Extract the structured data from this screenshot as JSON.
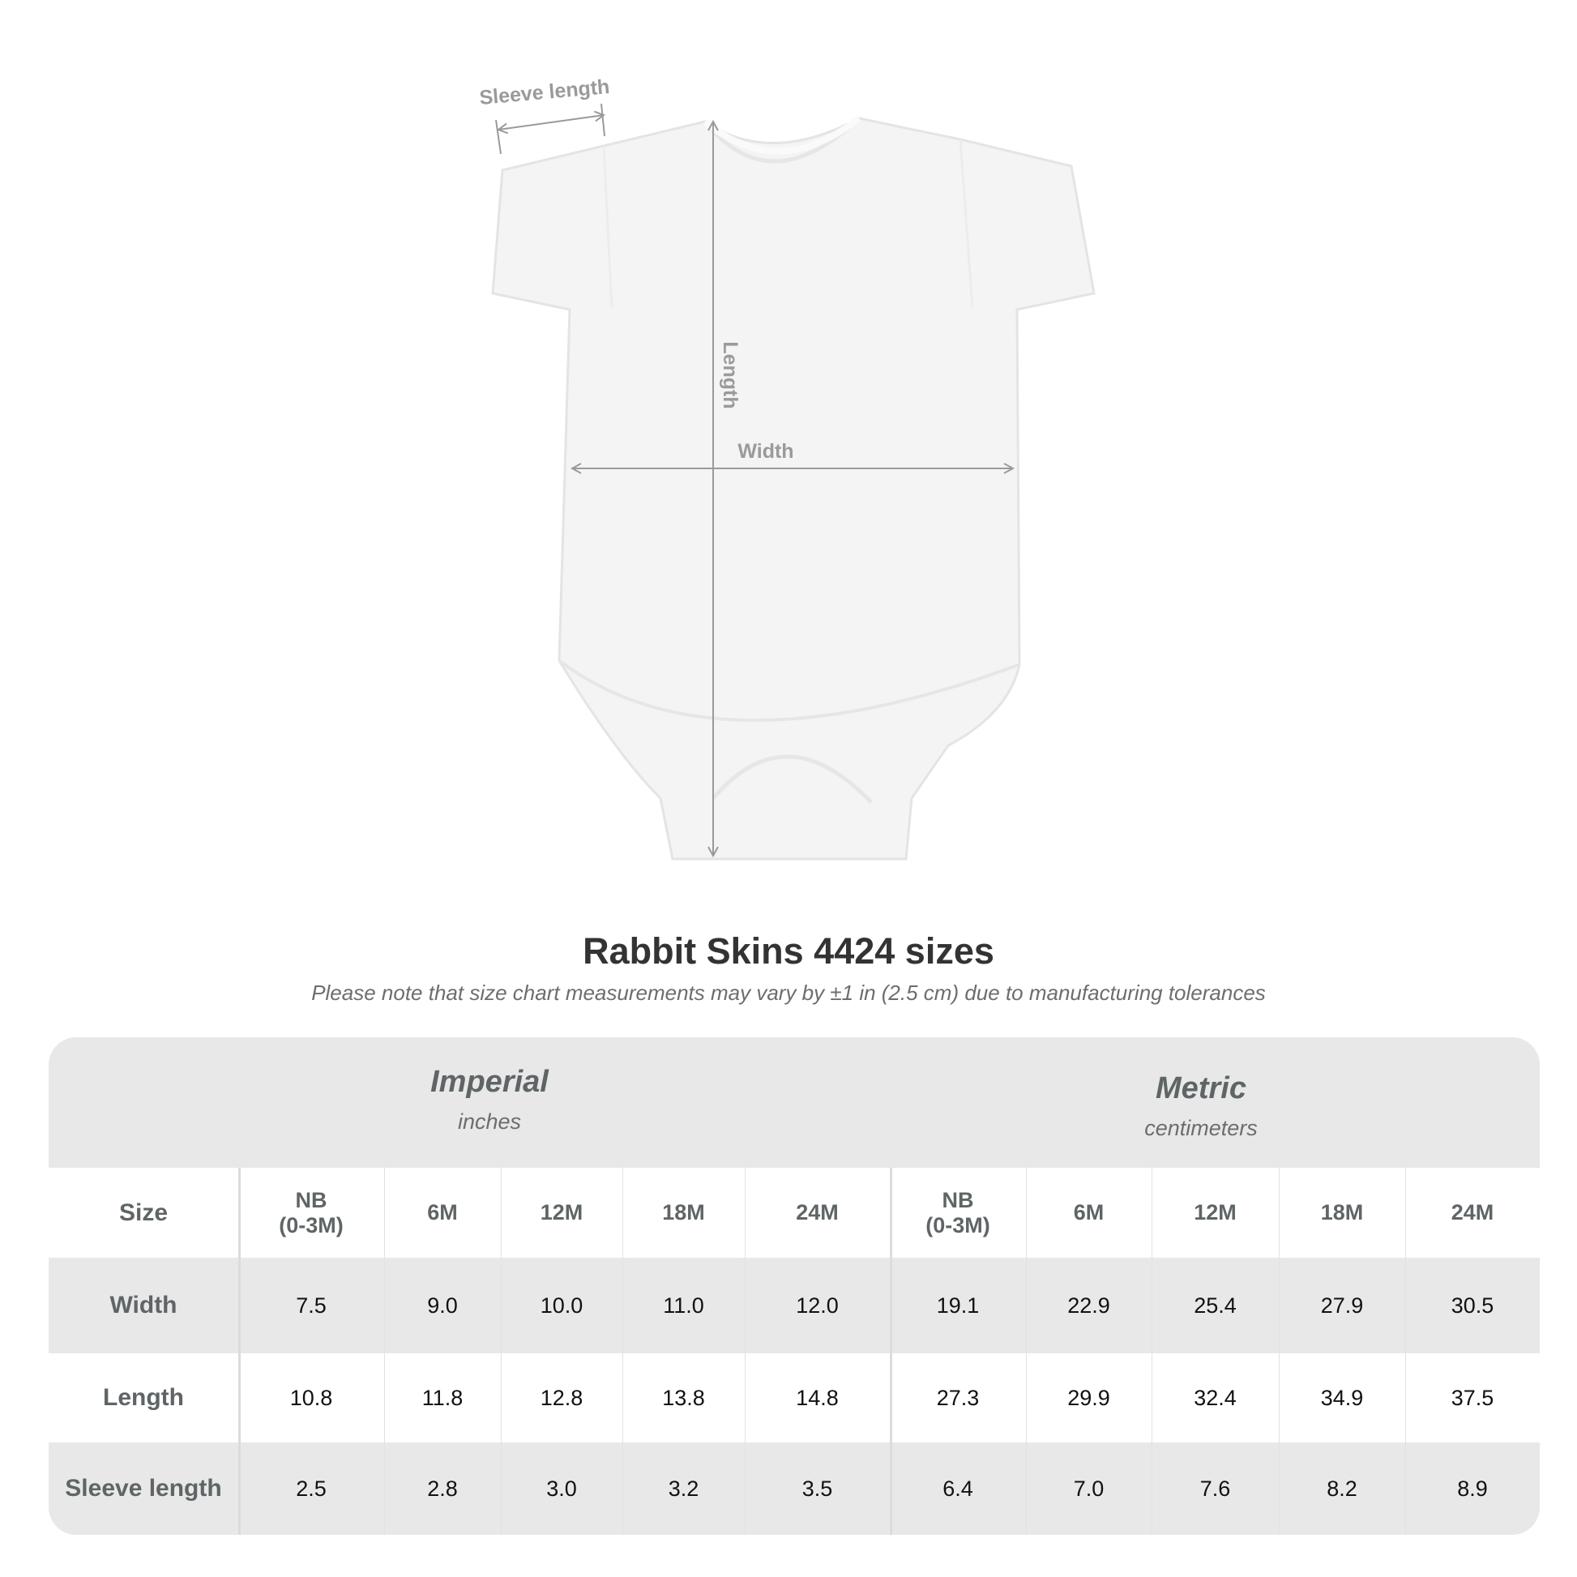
{
  "diagram": {
    "labels": {
      "sleeve": "Sleeve length",
      "length": "Length",
      "width": "Width"
    },
    "garment_color": "#f4f4f4",
    "arrow_color": "#9a9a9a"
  },
  "title": "Rabbit Skins 4424 sizes",
  "subtitle": "Please note that size chart measurements may vary by ±1 in (2.5 cm) due to manufacturing tolerances",
  "table": {
    "imperial": {
      "name": "Imperial",
      "unit": "inches"
    },
    "metric": {
      "name": "Metric",
      "unit": "centimeters"
    },
    "size_label": "Size",
    "sizes": [
      "NB\n(0-3M)",
      "6M",
      "12M",
      "18M",
      "24M",
      "NB\n(0-3M)",
      "6M",
      "12M",
      "18M",
      "24M"
    ],
    "rows": [
      {
        "label": "Width",
        "values": [
          "7.5",
          "9.0",
          "10.0",
          "11.0",
          "12.0",
          "19.1",
          "22.9",
          "25.4",
          "27.9",
          "30.5"
        ]
      },
      {
        "label": "Length",
        "values": [
          "10.8",
          "11.8",
          "12.8",
          "13.8",
          "14.8",
          "27.3",
          "29.9",
          "32.4",
          "34.9",
          "37.5"
        ]
      },
      {
        "label": "Sleeve length",
        "values": [
          "2.5",
          "2.8",
          "3.0",
          "3.2",
          "3.5",
          "6.4",
          "7.0",
          "7.6",
          "8.2",
          "8.9"
        ]
      }
    ],
    "band_color": "#e8e8e8"
  }
}
